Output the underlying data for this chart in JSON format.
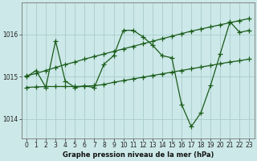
{
  "title": "Graphe pression niveau de la mer (hPa)",
  "bg_color": "#cce8e8",
  "plot_bg_color": "#cce8e8",
  "grid_color": "#aacccc",
  "line_color": "#1a5c1a",
  "xlim": [
    -0.5,
    23.5
  ],
  "ylim": [
    1013.55,
    1016.75
  ],
  "yticks": [
    1014,
    1015,
    1016
  ],
  "xticks": [
    0,
    1,
    2,
    3,
    4,
    5,
    6,
    7,
    8,
    9,
    10,
    11,
    12,
    13,
    14,
    15,
    16,
    17,
    18,
    19,
    20,
    21,
    22,
    23
  ],
  "s1_y": [
    1015.0,
    1015.15,
    1014.75,
    1015.85,
    1014.9,
    1014.75,
    1014.78,
    1014.75,
    1015.3,
    1015.5,
    1016.1,
    1016.1,
    1015.95,
    1015.75,
    1015.5,
    1015.45,
    1014.35,
    1013.82,
    1014.15,
    1014.8,
    1015.55,
    1016.3,
    1016.05,
    1016.1
  ],
  "s2_y": [
    1014.75,
    1014.76,
    1014.77,
    1014.77,
    1014.77,
    1014.77,
    1014.78,
    1014.79,
    1014.82,
    1014.87,
    1014.91,
    1014.95,
    1014.99,
    1015.03,
    1015.07,
    1015.11,
    1015.15,
    1015.19,
    1015.23,
    1015.27,
    1015.31,
    1015.35,
    1015.38,
    1015.42
  ],
  "s3_y": [
    1015.02,
    1015.08,
    1015.15,
    1015.22,
    1015.29,
    1015.35,
    1015.42,
    1015.48,
    1015.54,
    1015.6,
    1015.66,
    1015.72,
    1015.78,
    1015.84,
    1015.9,
    1015.96,
    1016.02,
    1016.08,
    1016.13,
    1016.18,
    1016.23,
    1016.28,
    1016.33,
    1016.38
  ],
  "marker": "+",
  "marker_size": 4,
  "marker_ew": 0.9,
  "linewidth": 0.9,
  "tick_labelsize": 5.5,
  "xlabel_fontsize": 6.0
}
